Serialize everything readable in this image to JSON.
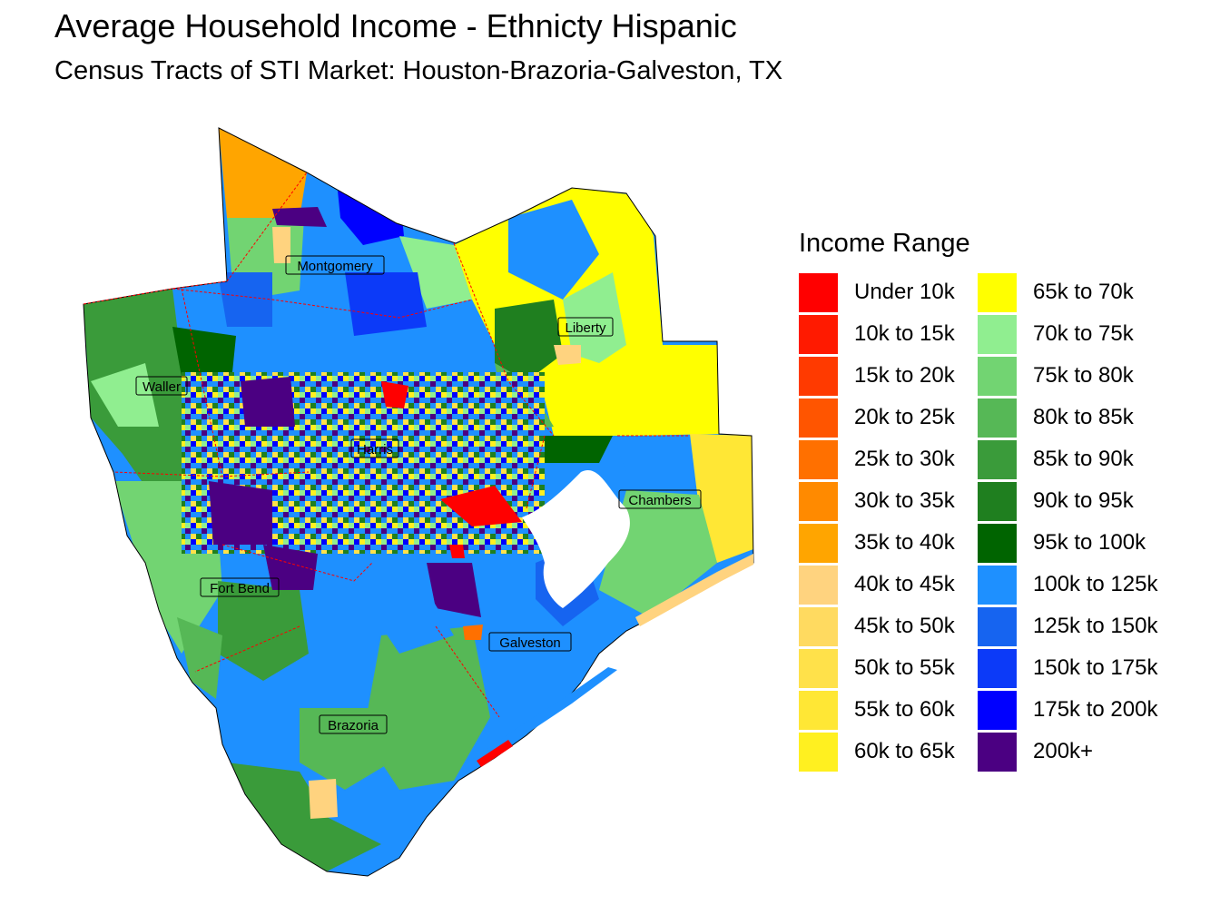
{
  "title": "Average Household Income - Ethnicty Hispanic",
  "subtitle": "Census Tracts of STI Market: Houston-Brazoria-Galveston, TX",
  "legend": {
    "title": "Income Range",
    "items": [
      {
        "label": "Under 10k",
        "color": "#FF0000"
      },
      {
        "label": "10k to 15k",
        "color": "#FF1A00"
      },
      {
        "label": "15k to 20k",
        "color": "#FF3A00"
      },
      {
        "label": "20k to 25k",
        "color": "#FF5500"
      },
      {
        "label": "25k to 30k",
        "color": "#FF7000"
      },
      {
        "label": "30k to 35k",
        "color": "#FF8A00"
      },
      {
        "label": "35k to 40k",
        "color": "#FFA500"
      },
      {
        "label": "40k to 45k",
        "color": "#FFD37F"
      },
      {
        "label": "45k to 50k",
        "color": "#FFDA60"
      },
      {
        "label": "50k to 55k",
        "color": "#FFE14A"
      },
      {
        "label": "55k to 60k",
        "color": "#FFE735"
      },
      {
        "label": "60k to 65k",
        "color": "#FFF020"
      },
      {
        "label": "65k to 70k",
        "color": "#FFFF00"
      },
      {
        "label": "70k to 75k",
        "color": "#90EE90"
      },
      {
        "label": "75k to 80k",
        "color": "#72D472"
      },
      {
        "label": "80k to 85k",
        "color": "#56B856"
      },
      {
        "label": "85k to 90k",
        "color": "#3A9B3A"
      },
      {
        "label": "90k to 95k",
        "color": "#1F7F1F"
      },
      {
        "label": "95k to 100k",
        "color": "#006400"
      },
      {
        "label": "100k to 125k",
        "color": "#1E90FF"
      },
      {
        "label": "125k to 150k",
        "color": "#1664F0"
      },
      {
        "label": "150k to 175k",
        "color": "#0C3AF8"
      },
      {
        "label": "175k to 200k",
        "color": "#0000FF"
      },
      {
        "label": "200k+",
        "color": "#4B0082"
      }
    ]
  },
  "counties": [
    {
      "name": "Montgomery"
    },
    {
      "name": "Liberty"
    },
    {
      "name": "Waller"
    },
    {
      "name": "Harris"
    },
    {
      "name": "Chambers"
    },
    {
      "name": "Fort Bend"
    },
    {
      "name": "Galveston"
    },
    {
      "name": "Brazoria"
    }
  ]
}
